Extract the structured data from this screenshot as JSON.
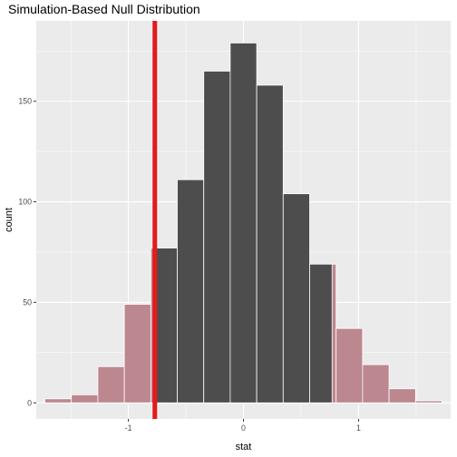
{
  "chart_data": {
    "type": "bar",
    "title": "Simulation-Based Null Distribution",
    "xlabel": "stat",
    "ylabel": "count",
    "xlim": [
      -1.8,
      1.8
    ],
    "ylim": [
      -8,
      190
    ],
    "x_ticks": [
      -1,
      0,
      1
    ],
    "x_tick_labels": [
      "-1",
      "0",
      "1"
    ],
    "y_ticks": [
      0,
      50,
      100,
      150
    ],
    "y_tick_labels": [
      "0",
      "50",
      "100",
      "150"
    ],
    "bin_width": 0.23,
    "bins": [
      {
        "center": -1.61,
        "count": 2
      },
      {
        "center": -1.38,
        "count": 4
      },
      {
        "center": -1.15,
        "count": 18
      },
      {
        "center": -0.92,
        "count": 49
      },
      {
        "center": -0.69,
        "count": 77
      },
      {
        "center": -0.46,
        "count": 111
      },
      {
        "center": -0.23,
        "count": 165
      },
      {
        "center": 0.0,
        "count": 179
      },
      {
        "center": 0.23,
        "count": 158
      },
      {
        "center": 0.46,
        "count": 104
      },
      {
        "center": 0.69,
        "count": 69
      },
      {
        "center": 0.92,
        "count": 37
      },
      {
        "center": 1.15,
        "count": 19
      },
      {
        "center": 1.38,
        "count": 7
      },
      {
        "center": 1.61,
        "count": 1
      }
    ],
    "observed_stat": -0.77,
    "shade_direction": "two-sided",
    "colors": {
      "panel_background": "#ebebeb",
      "grid_major": "#ffffff",
      "bar_fill": "#4d4d4d",
      "bar_outline": "#ffffff",
      "shade_fill": "#bc878f",
      "observed_line": "#e31a1c"
    },
    "grid": true
  }
}
